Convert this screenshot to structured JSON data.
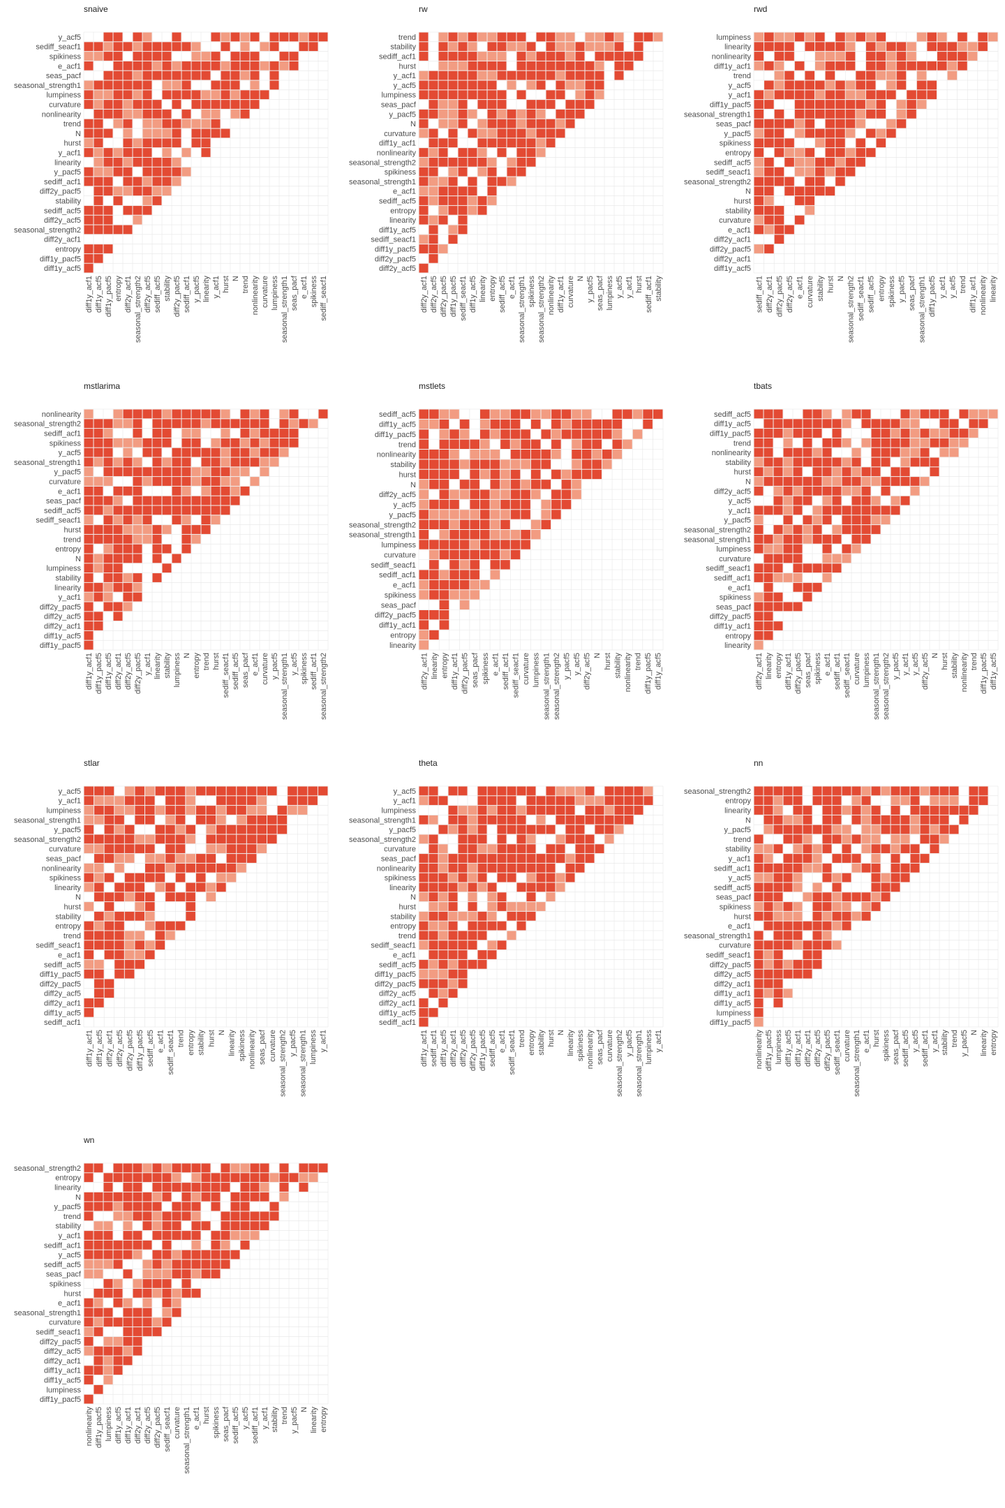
{
  "colors": {
    "strong": "#e34a33",
    "weak": "#f29c82",
    "grid": "#e6e6e6"
  },
  "chart_data": [
    {
      "type": "heatmap",
      "title": "snaive",
      "row_labels": [
        "y_acf5",
        "sediff_seacf1",
        "spikiness",
        "e_acf1",
        "seas_pacf",
        "seasonal_strength1",
        "lumpiness",
        "curvature",
        "nonlinearity",
        "trend",
        "N",
        "hurst",
        "y_acf1",
        "linearity",
        "y_pacf5",
        "sediff_acf1",
        "diff2y_pacf5",
        "stability",
        "sediff_acf5",
        "diff2y_acf5",
        "seasonal_strength2",
        "diff2y_acf1",
        "entropy",
        "diff1y_pacf5",
        "diff1y_acf5"
      ],
      "col_labels": [
        "diff1y_acf1",
        "diff1y_acf5",
        "diff1y_pacf5",
        "entropy",
        "diff2y_acf1",
        "seasonal_strength2",
        "diff2y_acf5",
        "sediff_acf5",
        "stability",
        "diff2y_pacf5",
        "sediff_acf1",
        "y_pacf5",
        "linearity",
        "y_acf1",
        "hurst",
        "N",
        "trend",
        "nonlinearity",
        "curvature",
        "lumpiness",
        "seasonal_strength1",
        "seas_pacf",
        "e_acf1",
        "spikiness",
        "sediff_seacf1"
      ],
      "fill_pattern": "lower-triangle"
    },
    {
      "type": "heatmap",
      "title": "rw",
      "row_labels": [
        "trend",
        "stability",
        "sediff_acf1",
        "hurst",
        "y_acf1",
        "y_acf5",
        "lumpiness",
        "seas_pacf",
        "y_pacf5",
        "N",
        "curvature",
        "diff1y_acf1",
        "nonlinearity",
        "seasonal_strength2",
        "spikiness",
        "seasonal_strength1",
        "e_acf1",
        "sediff_acf5",
        "entropy",
        "linearity",
        "diff1y_acf5",
        "sediff_seacf1",
        "diff1y_pacf5",
        "diff2y_pacf5",
        "diff2y_acf5"
      ],
      "col_labels": [
        "diff2y_acf1",
        "diff2y_acf5",
        "diff2y_pacf5",
        "diff1y_pacf5",
        "sediff_seacf1",
        "diff1y_acf5",
        "linearity",
        "entropy",
        "sediff_acf5",
        "e_acf1",
        "seasonal_strength1",
        "spikiness",
        "seasonal_strength2",
        "nonlinearity",
        "diff1y_acf1",
        "curvature",
        "N",
        "y_pacf5",
        "seas_pacf",
        "lumpiness",
        "y_acf5",
        "y_acf1",
        "hurst",
        "sediff_acf1",
        "stability"
      ],
      "fill_pattern": "lower-triangle"
    },
    {
      "type": "heatmap",
      "title": "rwd",
      "row_labels": [
        "lumpiness",
        "linearity",
        "nonlinearity",
        "diff1y_acf1",
        "trend",
        "y_acf5",
        "y_acf1",
        "diff1y_pacf5",
        "seasonal_strength1",
        "seas_pacf",
        "y_pacf5",
        "spikiness",
        "entropy",
        "sediff_acf5",
        "sediff_seacf1",
        "seasonal_strength2",
        "N",
        "hurst",
        "stability",
        "curvature",
        "e_acf1",
        "diff2y_acf1",
        "diff2y_pacf5",
        "diff2y_acf1",
        "diff1y_acf5"
      ],
      "col_labels": [
        "sediff_acf1",
        "diff2y_acf1",
        "diff2y_pacf5",
        "diff2y_acf5",
        "e_acf1",
        "curvature",
        "stability",
        "hurst",
        "N",
        "seasonal_strength2",
        "sediff_seacf1",
        "sediff_acf5",
        "entropy",
        "spikiness",
        "y_pacf5",
        "seas_pacf",
        "seasonal_strength1",
        "diff1y_pacf5",
        "y_acf1",
        "y_acf5",
        "trend",
        "diff1y_acf1",
        "nonlinearity",
        "linearity"
      ],
      "fill_pattern": "lower-triangle"
    },
    {
      "type": "heatmap",
      "title": "mstlarima",
      "row_labels": [
        "nonlinearity",
        "seasonal_strength2",
        "sediff_acf1",
        "spikiness",
        "y_acf5",
        "seasonal_strength1",
        "y_pacf5",
        "curvature",
        "e_acf1",
        "seas_pacf",
        "sediff_acf5",
        "sediff_seacf1",
        "hurst",
        "trend",
        "entropy",
        "N",
        "lumpiness",
        "stability",
        "linearity",
        "y_acf1",
        "diff2y_pacf5",
        "diff2y_acf5",
        "diff2y_acf1",
        "diff1y_acf5",
        "diff1y_pacf5"
      ],
      "col_labels": [
        "diff1y_acf1",
        "diff1y_pacf5",
        "diff1y_acf5",
        "diff2y_acf1",
        "diff2y_acf5",
        "diff2y_pacf5",
        "y_acf1",
        "linearity",
        "stability",
        "lumpiness",
        "N",
        "entropy",
        "trend",
        "hurst",
        "sediff_seacf1",
        "sediff_acf5",
        "seas_pacf",
        "e_acf1",
        "curvature",
        "y_pacf5",
        "seasonal_strength1",
        "y_acf5",
        "spikiness",
        "sediff_acf1",
        "seasonal_strength2"
      ],
      "fill_pattern": "lower-triangle"
    },
    {
      "type": "heatmap",
      "title": "mstlets",
      "row_labels": [
        "sediff_acf5",
        "diff1y_acf5",
        "diff1y_pacf5",
        "trend",
        "nonlinearity",
        "stability",
        "hurst",
        "N",
        "diff2y_acf5",
        "y_acf5",
        "y_pacf5",
        "seasonal_strength2",
        "seasonal_strength1",
        "lumpiness",
        "curvature",
        "sediff_seacf1",
        "sediff_acf1",
        "e_acf1",
        "spikiness",
        "seas_pacf",
        "diff2y_pacf5",
        "diff1y_acf1",
        "entropy",
        "linearity"
      ],
      "col_labels": [
        "diff2y_acf1",
        "linearity",
        "entropy",
        "diff1y_acf1",
        "diff2y_pacf5",
        "seas_pacf",
        "spikiness",
        "e_acf1",
        "sediff_acf1",
        "sediff_seacf1",
        "curvature",
        "lumpiness",
        "seasonal_strength1",
        "seasonal_strength2",
        "y_pacf5",
        "y_acf5",
        "diff2y_acf5",
        "N",
        "hurst",
        "stability",
        "nonlinearity",
        "trend",
        "diff1y_pacf5",
        "diff1y_acf5"
      ],
      "fill_pattern": "lower-triangle"
    },
    {
      "type": "heatmap",
      "title": "tbats",
      "row_labels": [
        "sediff_acf5",
        "diff1y_acf5",
        "diff1y_pacf5",
        "trend",
        "nonlinearity",
        "stability",
        "hurst",
        "N",
        "diff2y_acf5",
        "y_acf5",
        "y_acf1",
        "y_pacf5",
        "seasonal_strength2",
        "seasonal_strength1",
        "lumpiness",
        "curvature",
        "sediff_seacf1",
        "sediff_acf1",
        "e_acf1",
        "spikiness",
        "seas_pacf",
        "diff2y_pacf5",
        "diff1y_acf1",
        "entropy",
        "linearity"
      ],
      "col_labels": [
        "diff2y_acf1",
        "linearity",
        "entropy",
        "diff1y_acf1",
        "diff2y_pacf5",
        "seas_pacf",
        "spikiness",
        "e_acf1",
        "sediff_acf1",
        "sediff_seacf1",
        "curvature",
        "lumpiness",
        "seasonal_strength1",
        "seasonal_strength2",
        "y_pacf5",
        "y_acf1",
        "y_acf5",
        "diff2y_acf5",
        "N",
        "hurst",
        "stability",
        "nonlinearity",
        "trend",
        "diff1y_pacf5",
        "diff1y_acf5"
      ],
      "fill_pattern": "lower-triangle"
    },
    {
      "type": "heatmap",
      "title": "stlar",
      "row_labels": [
        "y_acf5",
        "y_acf1",
        "lumpiness",
        "seasonal_strength1",
        "y_pacf5",
        "seasonal_strength2",
        "curvature",
        "seas_pacf",
        "nonlinearity",
        "spikiness",
        "linearity",
        "N",
        "hurst",
        "stability",
        "entropy",
        "trend",
        "sediff_seacf1",
        "e_acf1",
        "sediff_acf5",
        "diff1y_pacf5",
        "diff2y_pacf5",
        "diff2y_acf5",
        "diff2y_acf1",
        "diff1y_acf5",
        "sediff_acf1"
      ],
      "col_labels": [
        "diff1y_acf1",
        "diff1y_acf5",
        "diff2y_acf1",
        "diff2y_acf5",
        "diff2y_pacf5",
        "diff1y_pacf5",
        "sediff_acf5",
        "e_acf1",
        "sediff_seacf1",
        "trend",
        "entropy",
        "stability",
        "hurst",
        "N",
        "linearity",
        "spikiness",
        "nonlinearity",
        "seas_pacf",
        "curvature",
        "seasonal_strength2",
        "y_pacf5",
        "seasonal_strength1",
        "lumpiness",
        "y_acf1"
      ],
      "fill_pattern": "lower-triangle"
    },
    {
      "type": "heatmap",
      "title": "theta",
      "row_labels": [
        "y_acf5",
        "y_acf1",
        "lumpiness",
        "seasonal_strength1",
        "y_pacf5",
        "seasonal_strength2",
        "curvature",
        "seas_pacf",
        "nonlinearity",
        "spikiness",
        "linearity",
        "N",
        "hurst",
        "stability",
        "entropy",
        "trend",
        "sediff_seacf1",
        "e_acf1",
        "sediff_acf5",
        "diff1y_pacf5",
        "diff2y_pacf5",
        "diff2y_acf5",
        "diff2y_acf1",
        "diff1y_acf5",
        "sediff_acf1"
      ],
      "col_labels": [
        "diff1y_acf1",
        "sediff_acf1",
        "diff1y_acf5",
        "diff2y_acf1",
        "diff2y_acf5",
        "diff2y_pacf5",
        "diff1y_pacf5",
        "sediff_acf5",
        "e_acf1",
        "sediff_seacf1",
        "trend",
        "entropy",
        "stability",
        "hurst",
        "N",
        "linearity",
        "spikiness",
        "nonlinearity",
        "seas_pacf",
        "curvature",
        "seasonal_strength2",
        "y_pacf5",
        "seasonal_strength1",
        "lumpiness",
        "y_acf1"
      ],
      "fill_pattern": "lower-triangle"
    },
    {
      "type": "heatmap",
      "title": "nn",
      "row_labels": [
        "seasonal_strength2",
        "entropy",
        "linearity",
        "N",
        "y_pacf5",
        "trend",
        "stability",
        "y_acf1",
        "sediff_acf1",
        "y_acf5",
        "sediff_acf5",
        "seas_pacf",
        "spikiness",
        "hurst",
        "e_acf1",
        "seasonal_strength1",
        "curvature",
        "sediff_seacf1",
        "diff2y_pacf5",
        "diff2y_acf5",
        "diff2y_acf1",
        "diff1y_acf1",
        "diff1y_acf5",
        "lumpiness",
        "diff1y_pacf5"
      ],
      "col_labels": [
        "nonlinearity",
        "diff1y_pacf5",
        "lumpiness",
        "diff1y_acf5",
        "diff1y_acf1",
        "diff2y_acf1",
        "diff2y_acf5",
        "diff2y_pacf5",
        "sediff_seacf1",
        "curvature",
        "seasonal_strength1",
        "e_acf1",
        "hurst",
        "spikiness",
        "seas_pacf",
        "sediff_acf5",
        "y_acf5",
        "sediff_acf1",
        "y_acf1",
        "stability",
        "trend",
        "y_pacf5",
        "N",
        "linearity",
        "entropy"
      ],
      "fill_pattern": "lower-triangle"
    },
    {
      "type": "heatmap",
      "title": "wn",
      "row_labels": [
        "seasonal_strength2",
        "entropy",
        "linearity",
        "N",
        "y_pacf5",
        "trend",
        "stability",
        "y_acf1",
        "sediff_acf1",
        "y_acf5",
        "sediff_acf5",
        "seas_pacf",
        "spikiness",
        "hurst",
        "e_acf1",
        "seasonal_strength1",
        "curvature",
        "sediff_seacf1",
        "diff2y_pacf5",
        "diff2y_acf5",
        "diff2y_acf1",
        "diff1y_acf1",
        "diff1y_acf5",
        "lumpiness",
        "diff1y_pacf5"
      ],
      "col_labels": [
        "nonlinearity",
        "diff1y_pacf5",
        "lumpiness",
        "diff1y_acf5",
        "diff1y_acf1",
        "diff2y_acf1",
        "diff2y_acf5",
        "diff2y_pacf5",
        "sediff_seacf1",
        "curvature",
        "seasonal_strength1",
        "e_acf1",
        "hurst",
        "spikiness",
        "seas_pacf",
        "sediff_acf5",
        "y_acf5",
        "sediff_acf1",
        "y_acf1",
        "stability",
        "trend",
        "y_pacf5",
        "N",
        "linearity",
        "entropy"
      ],
      "fill_pattern": "lower-triangle"
    }
  ]
}
